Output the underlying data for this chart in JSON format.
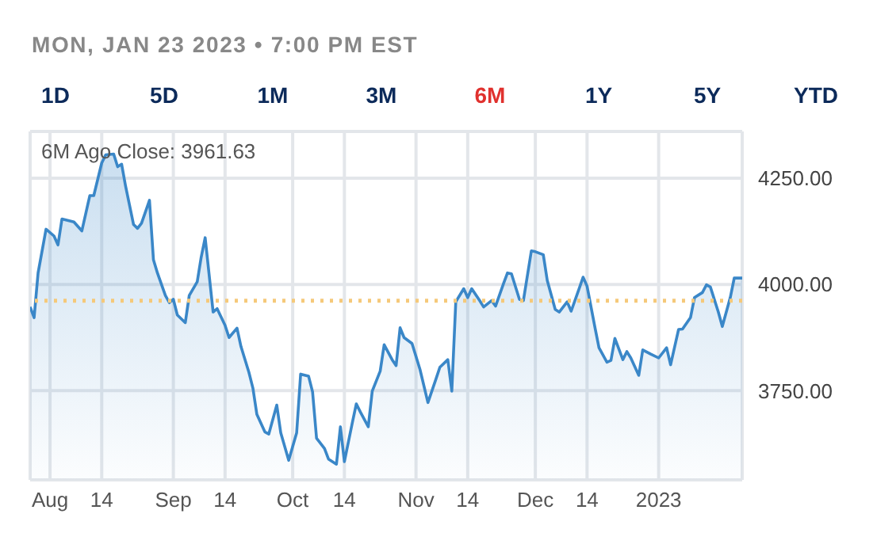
{
  "chart_data": {
    "type": "area",
    "title": "MON, JAN 23 2023 • 7:00 PM EST",
    "annotations": [
      "6M Ago Close: 3961.63",
      "1D",
      "5D",
      "1M",
      "3M",
      "6M",
      "1Y",
      "5Y",
      "YTD"
    ],
    "x": [
      "2022-07-27",
      "2022-07-28",
      "2022-07-29",
      "2022-07-31",
      "2022-08-02",
      "2022-08-03",
      "2022-08-04",
      "2022-08-07",
      "2022-08-09",
      "2022-08-11",
      "2022-08-12",
      "2022-08-14",
      "2022-08-15",
      "2022-08-17",
      "2022-08-18",
      "2022-08-19",
      "2022-08-20",
      "2022-08-22",
      "2022-08-23",
      "2022-08-24",
      "2022-08-26",
      "2022-08-27",
      "2022-08-28",
      "2022-08-30",
      "2022-08-31",
      "2022-09-01",
      "2022-09-02",
      "2022-09-04",
      "2022-09-05",
      "2022-09-07",
      "2022-09-08",
      "2022-09-09",
      "2022-09-11",
      "2022-09-12",
      "2022-09-14",
      "2022-09-15",
      "2022-09-17",
      "2022-09-18",
      "2022-09-20",
      "2022-09-21",
      "2022-09-22",
      "2022-09-24",
      "2022-09-25",
      "2022-09-27",
      "2022-09-28",
      "2022-09-30",
      "2022-10-02",
      "2022-10-03",
      "2022-10-05",
      "2022-10-06",
      "2022-10-07",
      "2022-10-09",
      "2022-10-10",
      "2022-10-12",
      "2022-10-13",
      "2022-10-14",
      "2022-10-16",
      "2022-10-17",
      "2022-10-18",
      "2022-10-20",
      "2022-10-21",
      "2022-10-23",
      "2022-10-24",
      "2022-10-26",
      "2022-10-27",
      "2022-10-28",
      "2022-10-29",
      "2022-10-31",
      "2022-11-02",
      "2022-11-04",
      "2022-11-06",
      "2022-11-07",
      "2022-11-09",
      "2022-11-10",
      "2022-11-11",
      "2022-11-13",
      "2022-11-14",
      "2022-11-15",
      "2022-11-17",
      "2022-11-18",
      "2022-11-20",
      "2022-11-21",
      "2022-11-23",
      "2022-11-24",
      "2022-11-25",
      "2022-11-27",
      "2022-11-28",
      "2022-11-30",
      "2022-12-01",
      "2022-12-03",
      "2022-12-04",
      "2022-12-06",
      "2022-12-07",
      "2022-12-09",
      "2022-12-10",
      "2022-12-12",
      "2022-12-13",
      "2022-12-14",
      "2022-12-16",
      "2022-12-17",
      "2022-12-19",
      "2022-12-20",
      "2022-12-21",
      "2022-12-23",
      "2022-12-24",
      "2022-12-25",
      "2022-12-27",
      "2022-12-28",
      "2022-12-30",
      "2023-01-01",
      "2023-01-03",
      "2023-01-04",
      "2023-01-06",
      "2023-01-07",
      "2023-01-09",
      "2023-01-10",
      "2023-01-12",
      "2023-01-13",
      "2023-01-14",
      "2023-01-16",
      "2023-01-17",
      "2023-01-19",
      "2023-01-20",
      "2023-01-22"
    ],
    "series": [
      {
        "color": "#3a87c8",
        "values": [
          3947,
          3922,
          4027,
          4130,
          4114,
          4093,
          4154,
          4147,
          4126,
          4209,
          4209,
          4286,
          4305,
          4307,
          4277,
          4283,
          4231,
          4141,
          4132,
          4144,
          4198,
          4058,
          4027,
          3974,
          3957,
          3965,
          3928,
          3910,
          3974,
          4006,
          4064,
          4110,
          3935,
          3943,
          3904,
          3875,
          3897,
          3854,
          3793,
          3756,
          3694,
          3653,
          3648,
          3716,
          3651,
          3586,
          3651,
          3789,
          3784,
          3747,
          3638,
          3614,
          3589,
          3577,
          3665,
          3583,
          3675,
          3719,
          3700,
          3665,
          3749,
          3796,
          3858,
          3823,
          3809,
          3898,
          3875,
          3861,
          3800,
          3722,
          3777,
          3805,
          3823,
          3749,
          3959,
          3990,
          3969,
          3990,
          3962,
          3947,
          3962,
          3949,
          4002,
          4027,
          4025,
          3965,
          3962,
          4079,
          4077,
          4070,
          4009,
          3941,
          3935,
          3959,
          3937,
          3990,
          4017,
          3996,
          3898,
          3851,
          3817,
          3821,
          3873,
          3823,
          3842,
          3827,
          3786,
          3846,
          3836,
          3827,
          3851,
          3811,
          3894,
          3895,
          3922,
          3969,
          3981,
          3999,
          3994,
          3935,
          3901,
          3969,
          4015,
          4015
        ]
      }
    ],
    "xlim": [
      "2022-07-27",
      "2023-01-22"
    ],
    "xticks": [
      {
        "value": "2022-08-01",
        "label": "Aug"
      },
      {
        "value": "2022-08-14",
        "label": "14"
      },
      {
        "value": "2022-09-01",
        "label": "Sep"
      },
      {
        "value": "2022-09-14",
        "label": "14"
      },
      {
        "value": "2022-10-01",
        "label": "Oct"
      },
      {
        "value": "2022-10-14",
        "label": "14"
      },
      {
        "value": "2022-11-01",
        "label": "Nov"
      },
      {
        "value": "2022-11-14",
        "label": "14"
      },
      {
        "value": "2022-12-01",
        "label": "Dec"
      },
      {
        "value": "2022-12-14",
        "label": "14"
      },
      {
        "value": "2023-01-01",
        "label": "2023"
      }
    ],
    "ylim": [
      3540,
      4360
    ],
    "yticks": [
      {
        "value": 3750,
        "label": "3750.00"
      },
      {
        "value": 4000,
        "label": "4000.00"
      },
      {
        "value": 4250,
        "label": "4250.00"
      }
    ],
    "ref_lines": [
      {
        "axis": "y",
        "value": 3961.63,
        "color": "#f5c97a",
        "line_style": "dotted"
      }
    ],
    "grid": true
  }
}
